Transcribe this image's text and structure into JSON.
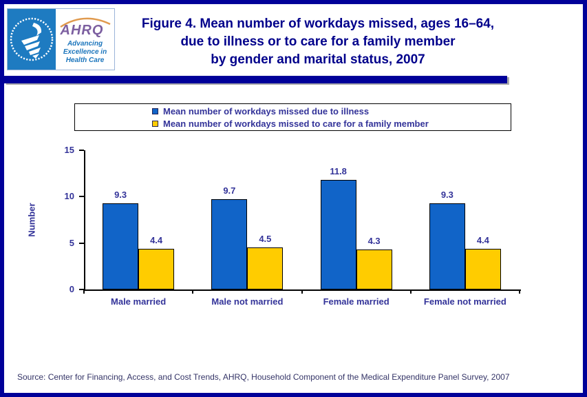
{
  "page": {
    "border_color": "#000099",
    "accent_navy": "#00008b",
    "label_navy": "#333399"
  },
  "logo": {
    "hhs_seal": "hhs-eagle-seal",
    "ahrq_acronym": "AHRQ",
    "tagline_lines": [
      "Advancing",
      "Excellence in",
      "Health Care"
    ]
  },
  "header": {
    "title_lines": [
      "Figure 4. Mean number of workdays missed, ages 16–64,",
      "due to illness or to care for a family member",
      "by gender and marital status, 2007"
    ]
  },
  "chart_data": {
    "type": "bar",
    "title": "Figure 4. Mean number of workdays missed, ages 16–64, due to illness or to care for a family member by gender and marital status, 2007",
    "xlabel": "",
    "ylabel": "Number",
    "ylim": [
      0,
      15
    ],
    "yticks": [
      0,
      5,
      10,
      15
    ],
    "grid": false,
    "legend_position": "top",
    "categories": [
      "Male married",
      "Male not married",
      "Female married",
      "Female not married"
    ],
    "series": [
      {
        "name": "Mean number of workdays missed due to illness",
        "color": "#1164c8",
        "values": [
          9.3,
          9.7,
          11.8,
          9.3
        ]
      },
      {
        "name": "Mean number of workdays missed to care for a family member",
        "color": "#ffcc00",
        "values": [
          4.4,
          4.5,
          4.3,
          4.4
        ]
      }
    ]
  },
  "footer": {
    "source": "Source: Center for Financing, Access, and Cost Trends, AHRQ, Household Component of the Medical Expenditure Panel Survey, 2007"
  }
}
